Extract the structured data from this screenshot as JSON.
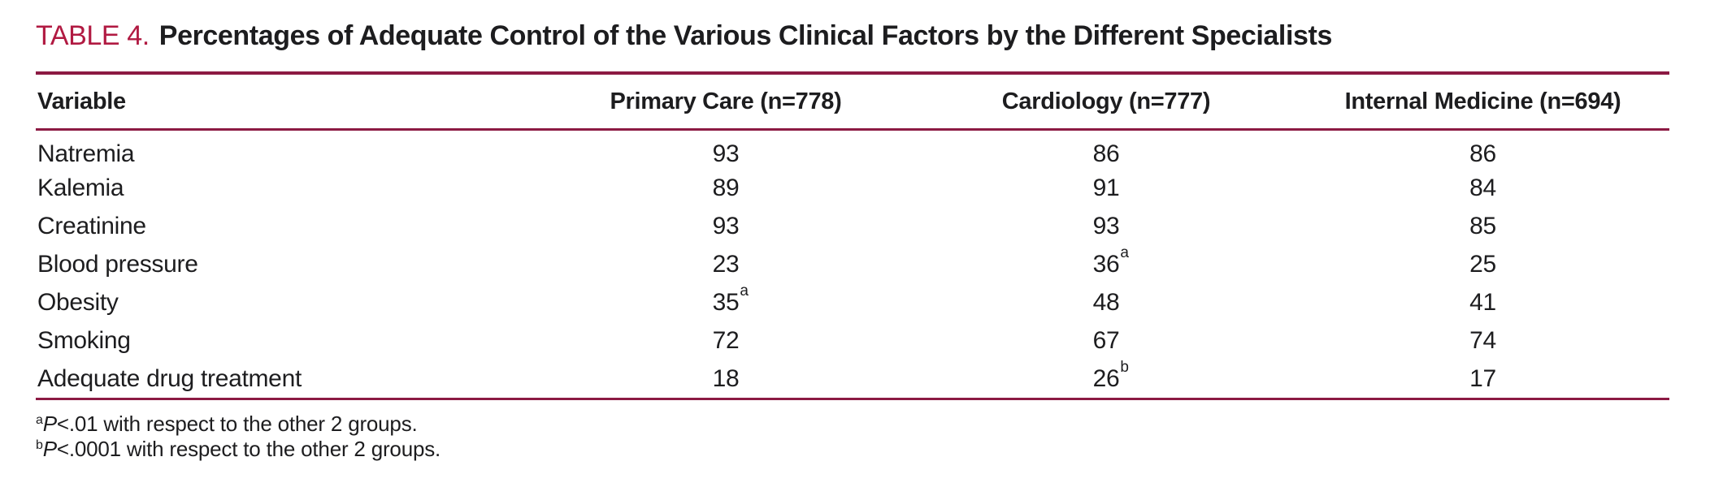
{
  "page": {
    "label": "TABLE 4.",
    "title": "Percentages of Adequate Control of the Various Clinical Factors by the Different Specialists"
  },
  "table": {
    "columns": [
      "Variable",
      "Primary Care (n=778)",
      "Cardiology (n=777)",
      "Internal Medicine (n=694)"
    ],
    "rows": [
      {
        "label": "Natremia",
        "values": [
          {
            "v": "93"
          },
          {
            "v": "86"
          },
          {
            "v": "86"
          }
        ]
      },
      {
        "label": "Kalemia",
        "values": [
          {
            "v": "89"
          },
          {
            "v": "91"
          },
          {
            "v": "84"
          }
        ]
      },
      {
        "label": "Creatinine",
        "values": [
          {
            "v": "93"
          },
          {
            "v": "93"
          },
          {
            "v": "85"
          }
        ]
      },
      {
        "label": "Blood pressure",
        "values": [
          {
            "v": "23"
          },
          {
            "v": "36",
            "sup": "a"
          },
          {
            "v": "25"
          }
        ]
      },
      {
        "label": "Obesity",
        "values": [
          {
            "v": "35",
            "sup": "a"
          },
          {
            "v": "48"
          },
          {
            "v": "41"
          }
        ]
      },
      {
        "label": "Smoking",
        "values": [
          {
            "v": "72"
          },
          {
            "v": "67"
          },
          {
            "v": "74"
          }
        ]
      },
      {
        "label": "Adequate drug treatment",
        "values": [
          {
            "v": "18"
          },
          {
            "v": "26",
            "sup": "b"
          },
          {
            "v": "17"
          }
        ]
      }
    ],
    "footnotes": [
      {
        "marker": "a",
        "p": "P",
        "text": "<.01 with respect to the other 2 groups."
      },
      {
        "marker": "b",
        "p": "P",
        "text": "<.0001 with respect to the other 2 groups."
      }
    ]
  },
  "colors": {
    "accent": "#B11A42",
    "rule": "#8C1A43",
    "text": "#1d1d1f"
  }
}
